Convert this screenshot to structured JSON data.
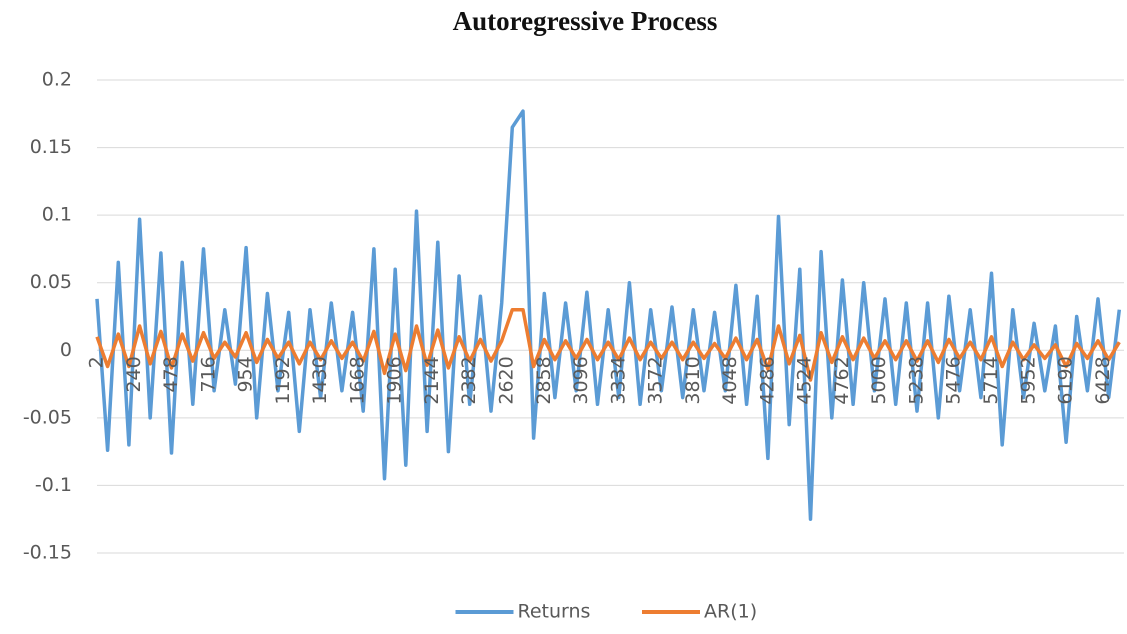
{
  "chart_data": {
    "type": "line",
    "title": "Autoregressive Process",
    "x": [
      2,
      70,
      138,
      206,
      274,
      342,
      410,
      478,
      546,
      614,
      682,
      750,
      818,
      886,
      954,
      1022,
      1090,
      1158,
      1226,
      1294,
      1362,
      1430,
      1498,
      1566,
      1634,
      1702,
      1770,
      1838,
      1906,
      1974,
      2042,
      2110,
      2178,
      2246,
      2314,
      2382,
      2450,
      2518,
      2586,
      2654,
      2722,
      2790,
      2858,
      2926,
      2994,
      3062,
      3130,
      3198,
      3266,
      3334,
      3402,
      3470,
      3538,
      3606,
      3674,
      3742,
      3810,
      3878,
      3946,
      4014,
      4082,
      4150,
      4218,
      4286,
      4354,
      4422,
      4490,
      4558,
      4626,
      4694,
      4762,
      4830,
      4898,
      4966,
      5034,
      5102,
      5170,
      5238,
      5306,
      5374,
      5442,
      5510,
      5578,
      5646,
      5714,
      5782,
      5850,
      5918,
      5986,
      6054,
      6122,
      6190,
      6258,
      6326,
      6394,
      6462,
      6530
    ],
    "series": [
      {
        "name": "Returns",
        "color": "#5b9bd5",
        "values": [
          0.038,
          -0.074,
          0.065,
          -0.07,
          0.097,
          -0.05,
          0.072,
          -0.076,
          0.065,
          -0.04,
          0.075,
          -0.03,
          0.03,
          -0.025,
          0.076,
          -0.05,
          0.042,
          -0.03,
          0.028,
          -0.06,
          0.03,
          -0.035,
          0.035,
          -0.03,
          0.028,
          -0.045,
          0.075,
          -0.095,
          0.06,
          -0.085,
          0.103,
          -0.06,
          0.08,
          -0.075,
          0.055,
          -0.04,
          0.04,
          -0.045,
          0.035,
          0.165,
          0.177,
          -0.065,
          0.042,
          -0.035,
          0.035,
          -0.03,
          0.043,
          -0.04,
          0.03,
          -0.035,
          0.05,
          -0.04,
          0.03,
          -0.03,
          0.032,
          -0.035,
          0.03,
          -0.03,
          0.028,
          -0.03,
          0.048,
          -0.04,
          0.04,
          -0.08,
          0.099,
          -0.055,
          0.06,
          -0.125,
          0.073,
          -0.05,
          0.052,
          -0.04,
          0.05,
          -0.03,
          0.038,
          -0.04,
          0.035,
          -0.045,
          0.035,
          -0.05,
          0.04,
          -0.03,
          0.03,
          -0.035,
          0.057,
          -0.07,
          0.03,
          -0.035,
          0.02,
          -0.03,
          0.018,
          -0.068,
          0.025,
          -0.03,
          0.038,
          -0.035,
          0.03
        ]
      },
      {
        "name": "AR(1)",
        "color": "#ed7d31",
        "values": [
          0.01,
          -0.012,
          0.012,
          -0.012,
          0.018,
          -0.01,
          0.014,
          -0.013,
          0.012,
          -0.008,
          0.013,
          -0.006,
          0.006,
          -0.005,
          0.013,
          -0.009,
          0.008,
          -0.006,
          0.006,
          -0.01,
          0.006,
          -0.007,
          0.007,
          -0.006,
          0.006,
          -0.008,
          0.014,
          -0.017,
          0.012,
          -0.015,
          0.018,
          -0.011,
          0.015,
          -0.013,
          0.01,
          -0.008,
          0.008,
          -0.008,
          0.007,
          0.03,
          0.03,
          -0.012,
          0.008,
          -0.007,
          0.007,
          -0.006,
          0.008,
          -0.007,
          0.006,
          -0.007,
          0.009,
          -0.007,
          0.006,
          -0.006,
          0.006,
          -0.007,
          0.006,
          -0.006,
          0.005,
          -0.006,
          0.009,
          -0.007,
          0.008,
          -0.014,
          0.018,
          -0.01,
          0.011,
          -0.022,
          0.013,
          -0.009,
          0.01,
          -0.007,
          0.009,
          -0.006,
          0.007,
          -0.007,
          0.007,
          -0.008,
          0.007,
          -0.009,
          0.008,
          -0.006,
          0.006,
          -0.007,
          0.01,
          -0.012,
          0.006,
          -0.007,
          0.004,
          -0.006,
          0.004,
          -0.012,
          0.005,
          -0.006,
          0.007,
          -0.007,
          0.006
        ]
      }
    ],
    "xlim": [
      2,
      6560
    ],
    "xticks": [
      2,
      240,
      478,
      716,
      954,
      1192,
      1430,
      1668,
      1906,
      2144,
      2382,
      2620,
      2858,
      3096,
      3334,
      3572,
      3810,
      4048,
      4286,
      4524,
      4762,
      5000,
      5238,
      5476,
      5714,
      5952,
      6190,
      6428
    ],
    "ylim": [
      -0.15,
      0.2
    ],
    "yticks": [
      0.2,
      0.15,
      0.1,
      0.05,
      0,
      -0.05,
      -0.1,
      -0.15
    ],
    "grid": true,
    "legend": "bottom"
  }
}
